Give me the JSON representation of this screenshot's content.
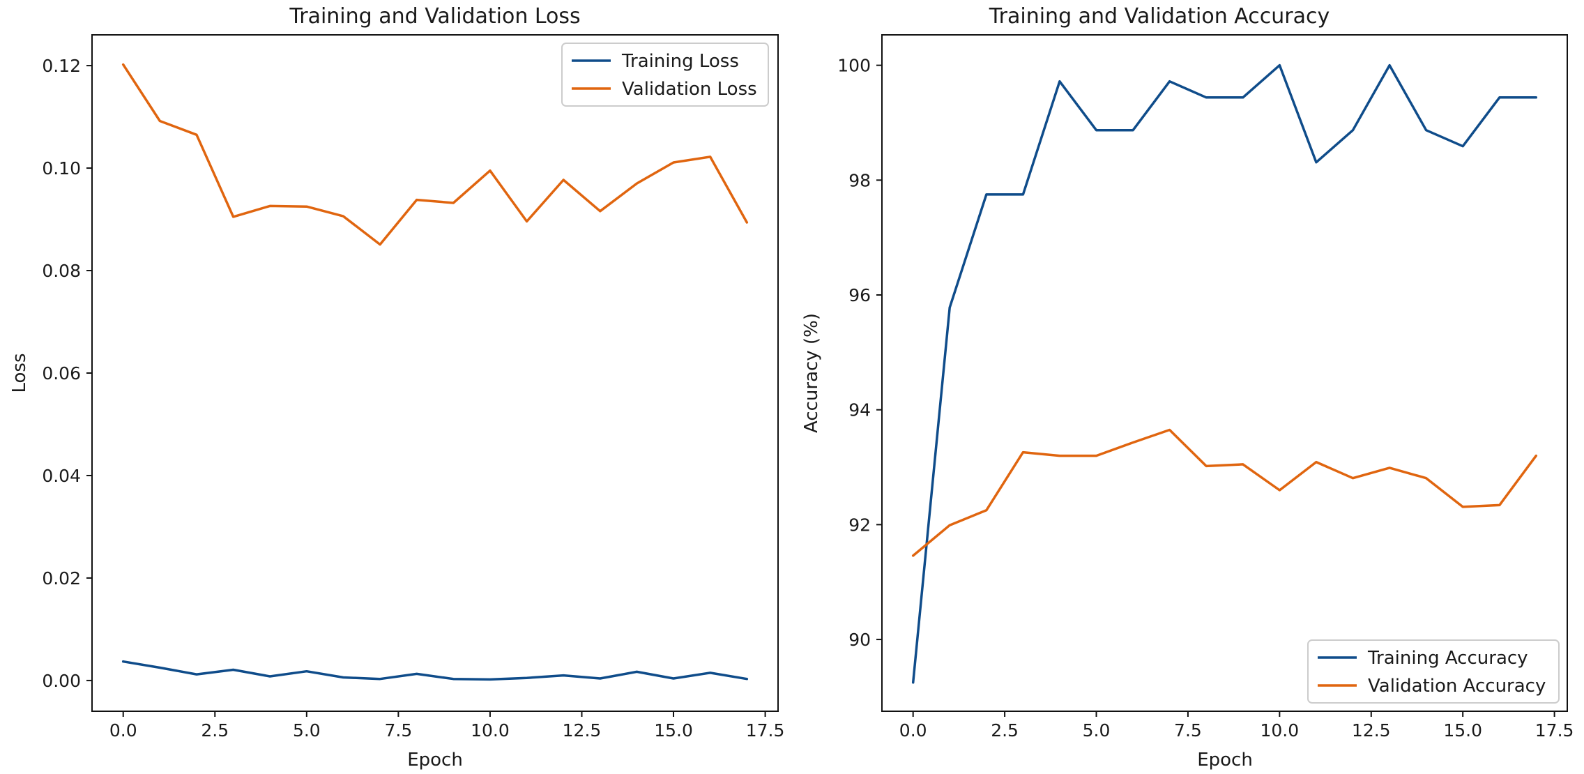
{
  "chart_data": [
    {
      "type": "line",
      "title": "Training and Validation Loss",
      "xlabel": "Epoch",
      "ylabel": "Loss",
      "xlim": [
        -0.85,
        17.85
      ],
      "ylim": [
        -0.006,
        0.126
      ],
      "xticks": [
        0.0,
        2.5,
        5.0,
        7.5,
        10.0,
        12.5,
        15.0,
        17.5
      ],
      "xtick_labels": [
        "0.0",
        "2.5",
        "5.0",
        "7.5",
        "10.0",
        "12.5",
        "15.0",
        "17.5"
      ],
      "yticks": [
        0.0,
        0.02,
        0.04,
        0.06,
        0.08,
        0.1,
        0.12
      ],
      "ytick_labels": [
        "0.00",
        "0.02",
        "0.04",
        "0.06",
        "0.08",
        "0.10",
        "0.12"
      ],
      "legend_position": "top-right",
      "x": [
        0,
        1,
        2,
        3,
        4,
        5,
        6,
        7,
        8,
        9,
        10,
        11,
        12,
        13,
        14,
        15,
        16,
        17
      ],
      "series": [
        {
          "name": "Training Loss",
          "color": "#0f4c8a",
          "values": [
            0.0037,
            0.0025,
            0.0012,
            0.0021,
            0.0008,
            0.0018,
            0.0006,
            0.0003,
            0.0013,
            0.0003,
            0.0002,
            0.0005,
            0.001,
            0.0004,
            0.0017,
            0.0004,
            0.0015,
            0.0003
          ]
        },
        {
          "name": "Validation Loss",
          "color": "#e0650f",
          "values": [
            0.1202,
            0.1092,
            0.1065,
            0.0905,
            0.0926,
            0.0925,
            0.0906,
            0.0851,
            0.0938,
            0.0932,
            0.0995,
            0.0896,
            0.0977,
            0.0916,
            0.097,
            0.1011,
            0.1022,
            0.0894
          ]
        }
      ]
    },
    {
      "type": "line",
      "title": "Training and Validation Accuracy",
      "xlabel": "Epoch",
      "ylabel": "Accuracy (%)",
      "xlim": [
        -0.85,
        17.85
      ],
      "ylim": [
        88.75,
        100.53
      ],
      "xticks": [
        0.0,
        2.5,
        5.0,
        7.5,
        10.0,
        12.5,
        15.0,
        17.5
      ],
      "xtick_labels": [
        "0.0",
        "2.5",
        "5.0",
        "7.5",
        "10.0",
        "12.5",
        "15.0",
        "17.5"
      ],
      "yticks": [
        90,
        92,
        94,
        96,
        98,
        100
      ],
      "ytick_labels": [
        "90",
        "92",
        "94",
        "96",
        "98",
        "100"
      ],
      "legend_position": "bottom-right",
      "x": [
        0,
        1,
        2,
        3,
        4,
        5,
        6,
        7,
        8,
        9,
        10,
        11,
        12,
        13,
        14,
        15,
        16,
        17
      ],
      "series": [
        {
          "name": "Training Accuracy",
          "color": "#0f4c8a",
          "values": [
            89.25,
            95.78,
            97.75,
            97.75,
            99.72,
            98.87,
            98.87,
            99.72,
            99.44,
            99.44,
            100.0,
            98.31,
            98.87,
            100.0,
            98.87,
            98.59,
            99.44,
            99.44
          ]
        },
        {
          "name": "Validation Accuracy",
          "color": "#e0650f",
          "values": [
            91.46,
            91.99,
            92.25,
            93.26,
            93.2,
            93.2,
            93.43,
            93.65,
            93.02,
            93.05,
            92.6,
            93.09,
            92.81,
            92.99,
            92.81,
            92.31,
            92.34,
            93.2
          ]
        }
      ]
    }
  ]
}
